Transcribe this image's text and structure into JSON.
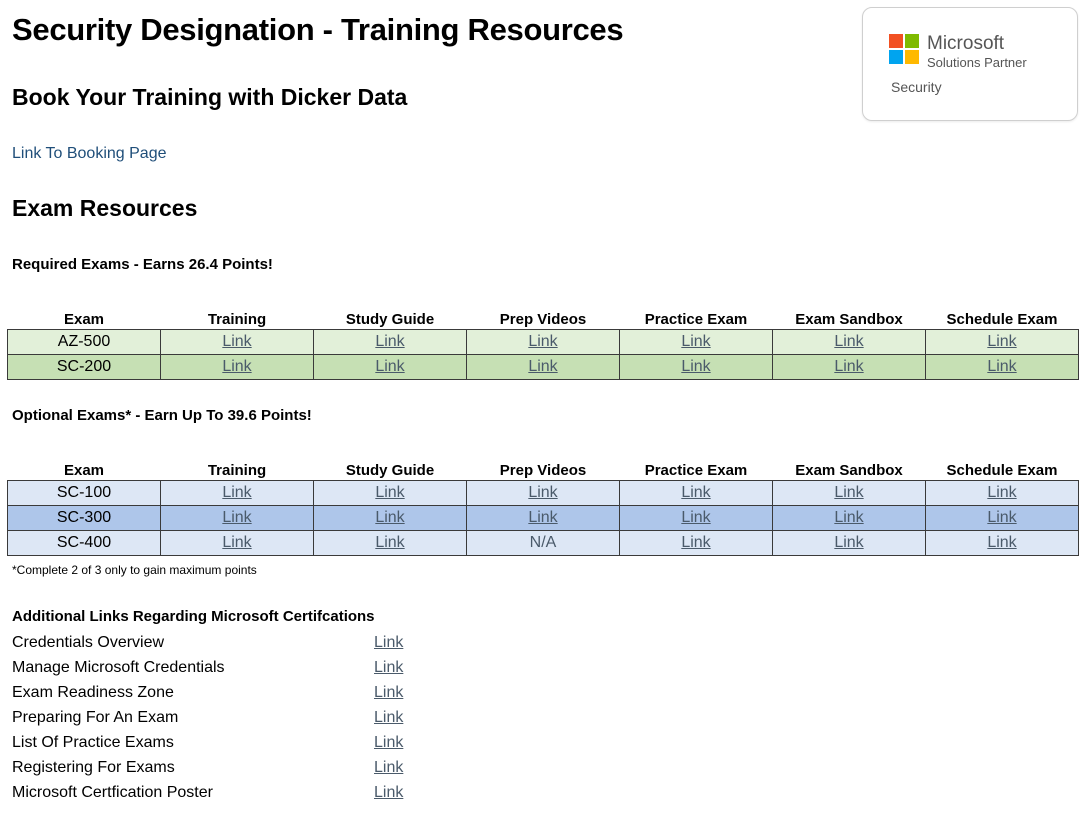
{
  "title": "Security Designation - Training Resources",
  "booking": {
    "heading": "Book Your Training with Dicker Data",
    "link_label": "Link To Booking Page"
  },
  "badge": {
    "brand": "Microsoft",
    "program": "Solutions Partner",
    "designation": "Security"
  },
  "exam_resources_heading": "Exam Resources",
  "required": {
    "heading": "Required Exams - Earns 26.4 Points!",
    "columns": [
      "Exam",
      "Training",
      "Study Guide",
      "Prep Videos",
      "Practice Exam",
      "Exam Sandbox",
      "Schedule Exam"
    ],
    "rows": [
      {
        "exam": "AZ-500",
        "cells": [
          "Link",
          "Link",
          "Link",
          "Link",
          "Link",
          "Link"
        ]
      },
      {
        "exam": "SC-200",
        "cells": [
          "Link",
          "Link",
          "Link",
          "Link",
          "Link",
          "Link"
        ]
      }
    ]
  },
  "optional": {
    "heading": "Optional Exams* - Earn Up To 39.6 Points!",
    "columns": [
      "Exam",
      "Training",
      "Study Guide",
      "Prep Videos",
      "Practice Exam",
      "Exam Sandbox",
      "Schedule Exam"
    ],
    "rows": [
      {
        "exam": "SC-100",
        "cells": [
          "Link",
          "Link",
          "Link",
          "Link",
          "Link",
          "Link"
        ]
      },
      {
        "exam": "SC-300",
        "cells": [
          "Link",
          "Link",
          "Link",
          "Link",
          "Link",
          "Link"
        ]
      },
      {
        "exam": "SC-400",
        "cells": [
          "Link",
          "Link",
          "N/A",
          "Link",
          "Link",
          "Link"
        ]
      }
    ],
    "footnote": "*Complete 2 of 3 only to gain maximum points"
  },
  "additional": {
    "heading": "Additional Links Regarding Microsoft Certifcations",
    "items": [
      {
        "label": "Credentials Overview",
        "link": "Link"
      },
      {
        "label": "Manage Microsoft Credentials",
        "link": "Link"
      },
      {
        "label": "Exam Readiness Zone",
        "link": "Link"
      },
      {
        "label": "Preparing For An Exam",
        "link": "Link"
      },
      {
        "label": "List Of Practice Exams",
        "link": "Link"
      },
      {
        "label": "Registering For Exams",
        "link": "Link"
      },
      {
        "label": "Microsoft Certfication Poster",
        "link": "Link"
      }
    ]
  },
  "colors": {
    "required_row_a": "#e2f0d9",
    "required_row_b": "#c6e0b4",
    "optional_row_a": "#dde7f5",
    "optional_row_b": "#aec6ea",
    "link_text": "#4a5a6a",
    "booking_link": "#1f4e79"
  }
}
